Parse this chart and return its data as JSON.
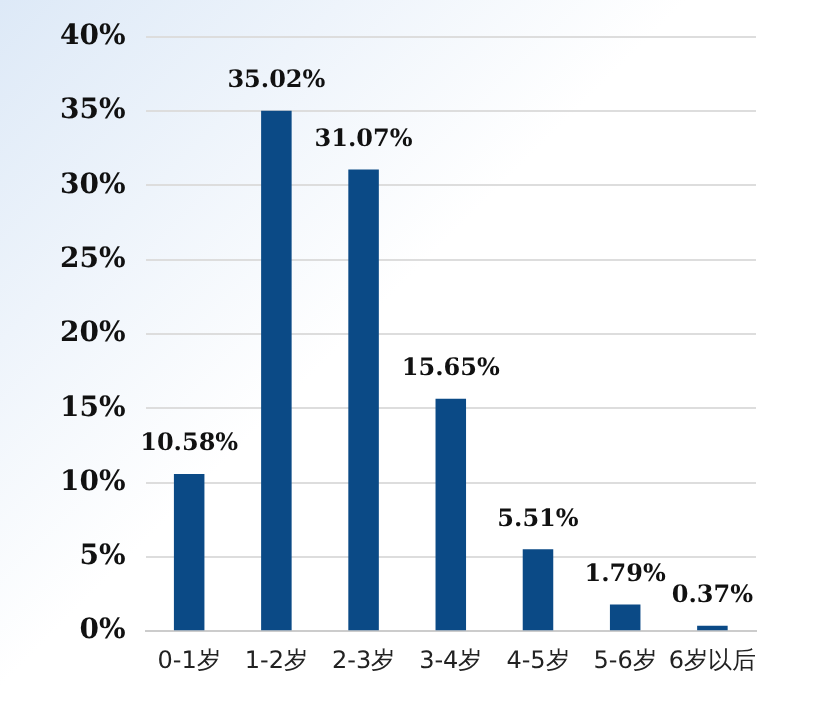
{
  "chart_data": {
    "type": "bar",
    "categories": [
      "0-1岁",
      "1-2岁",
      "2-3岁",
      "3-4岁",
      "4-5岁",
      "5-6岁",
      "6岁以后"
    ],
    "values": [
      10.58,
      35.02,
      31.07,
      15.65,
      5.51,
      1.79,
      0.37
    ],
    "color": "#0b4a86",
    "value_labels": [
      "10.58%",
      "35.02%",
      "31.07%",
      "15.65%",
      "5.51%",
      "1.79%",
      "0.37%"
    ],
    "ylim": [
      0,
      40
    ],
    "yticks": [
      {
        "value": 0,
        "label": "0%"
      },
      {
        "value": 5,
        "label": "5%"
      },
      {
        "value": 10,
        "label": "10%"
      },
      {
        "value": 15,
        "label": "15%"
      },
      {
        "value": 20,
        "label": "20%"
      },
      {
        "value": 25,
        "label": "25%"
      },
      {
        "value": 30,
        "label": "30%"
      },
      {
        "value": 35,
        "label": "35%"
      },
      {
        "value": 40,
        "label": "40%"
      }
    ],
    "grid": "y",
    "legend": false
  }
}
